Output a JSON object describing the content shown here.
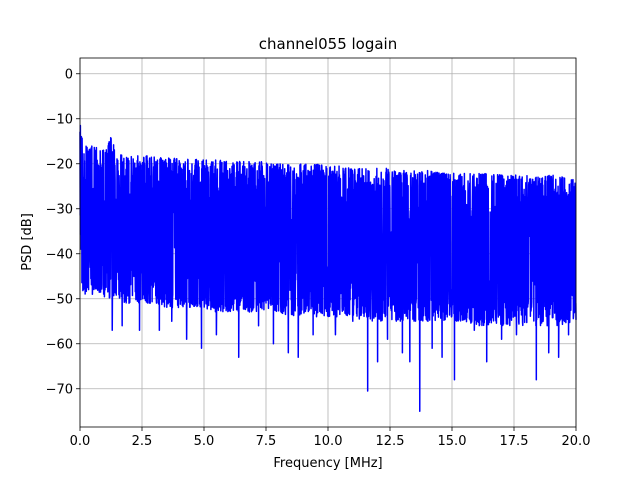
{
  "chart_data": {
    "type": "line",
    "title": "channel055 logain",
    "xlabel": "Frequency [MHz]",
    "ylabel": "PSD [dB]",
    "xlim": [
      0,
      20
    ],
    "ylim": [
      -78.5,
      3.5
    ],
    "xticks": [
      0,
      2.5,
      5,
      7.5,
      10,
      12.5,
      15,
      17.5,
      20
    ],
    "xtick_labels": [
      "0.0",
      "2.5",
      "5.0",
      "7.5",
      "10.0",
      "12.5",
      "15.0",
      "17.5",
      "20.0"
    ],
    "yticks": [
      0,
      -10,
      -20,
      -30,
      -40,
      -50,
      -60,
      -70
    ],
    "ytick_labels": [
      "0",
      "−10",
      "−20",
      "−30",
      "−40",
      "−50",
      "−60",
      "−70"
    ],
    "grid": true,
    "series": [
      {
        "color": "#0000ff",
        "x": [
          0.0,
          0.05,
          0.1,
          0.15,
          0.25,
          0.4,
          0.6,
          0.8,
          1.0,
          1.25,
          1.5,
          1.75,
          2.0,
          2.5,
          3.0,
          3.5,
          4.0,
          4.5,
          5.0,
          5.5,
          6.0,
          6.5,
          7.0,
          7.5,
          8.0,
          8.5,
          9.0,
          9.5,
          10.0,
          10.5,
          11.0,
          11.5,
          12.0,
          12.5,
          13.0,
          13.5,
          14.0,
          14.5,
          15.0,
          15.5,
          16.0,
          16.5,
          17.0,
          17.5,
          18.0,
          18.5,
          19.0,
          19.5,
          20.0
        ],
        "upper": [
          -10,
          -13,
          -14,
          -14,
          -15,
          -16,
          -16,
          -17,
          -17,
          -14,
          -18,
          -18,
          -18,
          -18,
          -18.5,
          -18.5,
          -19,
          -19,
          -19,
          -19,
          -19.5,
          -19.5,
          -19.5,
          -19.5,
          -20,
          -20,
          -20,
          -20,
          -20.5,
          -20.5,
          -21,
          -21,
          -21,
          -21,
          -21.5,
          -21.5,
          -21.5,
          -22,
          -22,
          -22,
          -22,
          -22,
          -22.5,
          -22.5,
          -22.5,
          -23,
          -22.5,
          -23,
          -23.5
        ],
        "lower": [
          -30,
          -45,
          -48,
          -49,
          -49,
          -48,
          -48,
          -49,
          -50,
          -50,
          -50,
          -51,
          -51,
          -51,
          -51,
          -52,
          -52,
          -52,
          -52,
          -53,
          -53,
          -53,
          -53,
          -53,
          -53,
          -54,
          -54,
          -54,
          -54,
          -54,
          -54,
          -55,
          -55,
          -55,
          -55,
          -55,
          -55,
          -55,
          -55,
          -55,
          -56,
          -56,
          -56,
          -56,
          -56,
          -56,
          -56,
          -56,
          -55
        ],
        "dips": [
          [
            0.5,
            -49
          ],
          [
            1.3,
            -57
          ],
          [
            1.7,
            -56
          ],
          [
            2.4,
            -57
          ],
          [
            3.2,
            -57
          ],
          [
            3.7,
            -55
          ],
          [
            4.3,
            -59
          ],
          [
            4.9,
            -61
          ],
          [
            5.5,
            -58
          ],
          [
            6.4,
            -63
          ],
          [
            7.2,
            -56
          ],
          [
            7.8,
            -60
          ],
          [
            8.4,
            -62
          ],
          [
            8.8,
            -63
          ],
          [
            9.4,
            -58
          ],
          [
            10.3,
            -58
          ],
          [
            11.0,
            -55
          ],
          [
            11.6,
            -70.5
          ],
          [
            12.0,
            -64
          ],
          [
            12.4,
            -59
          ],
          [
            13.0,
            -62
          ],
          [
            13.3,
            -64
          ],
          [
            13.7,
            -75
          ],
          [
            14.2,
            -61
          ],
          [
            14.6,
            -63
          ],
          [
            15.1,
            -68
          ],
          [
            15.9,
            -57
          ],
          [
            16.4,
            -64
          ],
          [
            17.0,
            -59
          ],
          [
            17.6,
            -58
          ],
          [
            18.4,
            -68
          ],
          [
            18.9,
            -62
          ],
          [
            19.3,
            -63
          ],
          [
            19.7,
            -58
          ]
        ]
      }
    ]
  }
}
